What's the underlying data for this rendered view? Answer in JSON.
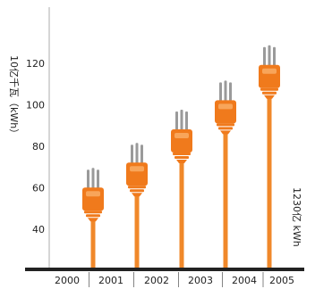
{
  "chart_data": {
    "type": "bar",
    "ylabel": "10亿千瓦（kWh）",
    "annotation": "1230亿 kWh",
    "categories": [
      "2001",
      "2002",
      "2003",
      "2004",
      "2005"
    ],
    "x_tick_labels": [
      "2000",
      "2001",
      "2002",
      "2003",
      "2004",
      "2005"
    ],
    "values": [
      55,
      67,
      83,
      97,
      114
    ],
    "ylim": [
      20,
      145
    ],
    "yticks": [
      40,
      60,
      80,
      100,
      120
    ],
    "grid": false,
    "colors": {
      "plug_body": "#f07a1c",
      "plug_highlight": "#f8a55a",
      "cord": "#f0882a",
      "prong": "#9a9a9a",
      "axis": "#222222",
      "y_axis_line": "#bbbbbb"
    }
  }
}
